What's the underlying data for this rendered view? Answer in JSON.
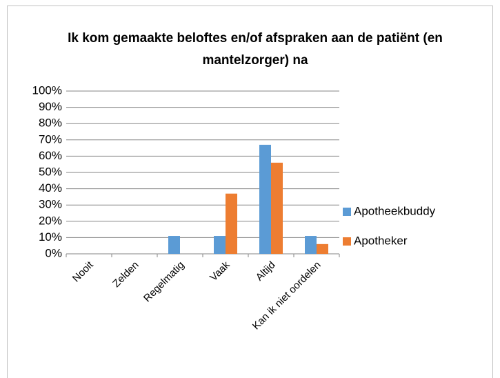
{
  "chart_data": {
    "type": "bar",
    "title": "Ik kom gemaakte beloftes en/of afspraken aan de patiënt (en mantelzorger) na",
    "categories": [
      "Nooit",
      "Zelden",
      "Regelmatig",
      "Vaak",
      "Altijd",
      "Kan ik niet oordelen"
    ],
    "series": [
      {
        "name": "Apotheekbuddy",
        "color": "#5b9bd5",
        "values": [
          0,
          0,
          11,
          11,
          67,
          11
        ]
      },
      {
        "name": "Apotheker",
        "color": "#ed7d31",
        "values": [
          0,
          0,
          0,
          37,
          56,
          6
        ]
      }
    ],
    "ylim": [
      0,
      100
    ],
    "yticks": [
      {
        "value": 0,
        "label": "0%"
      },
      {
        "value": 10,
        "label": "10%"
      },
      {
        "value": 20,
        "label": "20%"
      },
      {
        "value": 30,
        "label": "30%"
      },
      {
        "value": 40,
        "label": "40%"
      },
      {
        "value": 50,
        "label": "50%"
      },
      {
        "value": 60,
        "label": "60%"
      },
      {
        "value": 70,
        "label": "70%"
      },
      {
        "value": 80,
        "label": "80%"
      },
      {
        "value": 90,
        "label": "90%"
      },
      {
        "value": 100,
        "label": "100%"
      }
    ],
    "grid": true,
    "legend": "right"
  }
}
